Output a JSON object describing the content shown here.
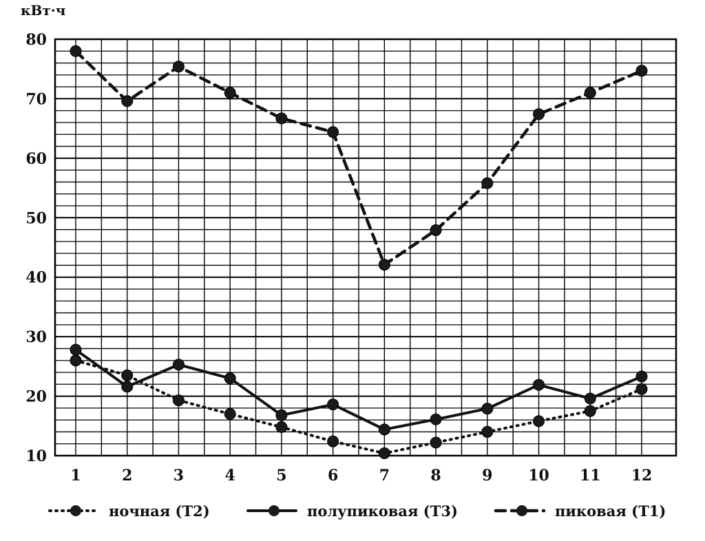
{
  "chart_data": {
    "type": "line",
    "ylabel": "кВт·ч",
    "xlabel": "",
    "x": [
      1,
      2,
      3,
      4,
      5,
      6,
      7,
      8,
      9,
      10,
      11,
      12
    ],
    "ylim": [
      10,
      80
    ],
    "y_ticks": [
      10,
      20,
      30,
      40,
      50,
      60,
      70,
      80
    ],
    "grid": true,
    "legend_position": "bottom",
    "series": [
      {
        "name": "ночная (Т2)",
        "style": "dotted",
        "values": [
          26,
          23.5,
          19.3,
          17,
          14.8,
          12.4,
          10.4,
          12.2,
          14,
          15.8,
          17.5,
          21.2
        ]
      },
      {
        "name": "полупиковая (Т3)",
        "style": "solid",
        "values": [
          27.8,
          21.6,
          25.3,
          23,
          16.8,
          18.6,
          14.4,
          16.1,
          17.9,
          21.9,
          19.6,
          23.3
        ]
      },
      {
        "name": "пиковая (Т1)",
        "style": "dashed",
        "values": [
          78,
          69.6,
          75.4,
          71,
          66.7,
          64.4,
          42.1,
          47.9,
          55.8,
          67.4,
          71,
          74.7
        ]
      }
    ]
  }
}
